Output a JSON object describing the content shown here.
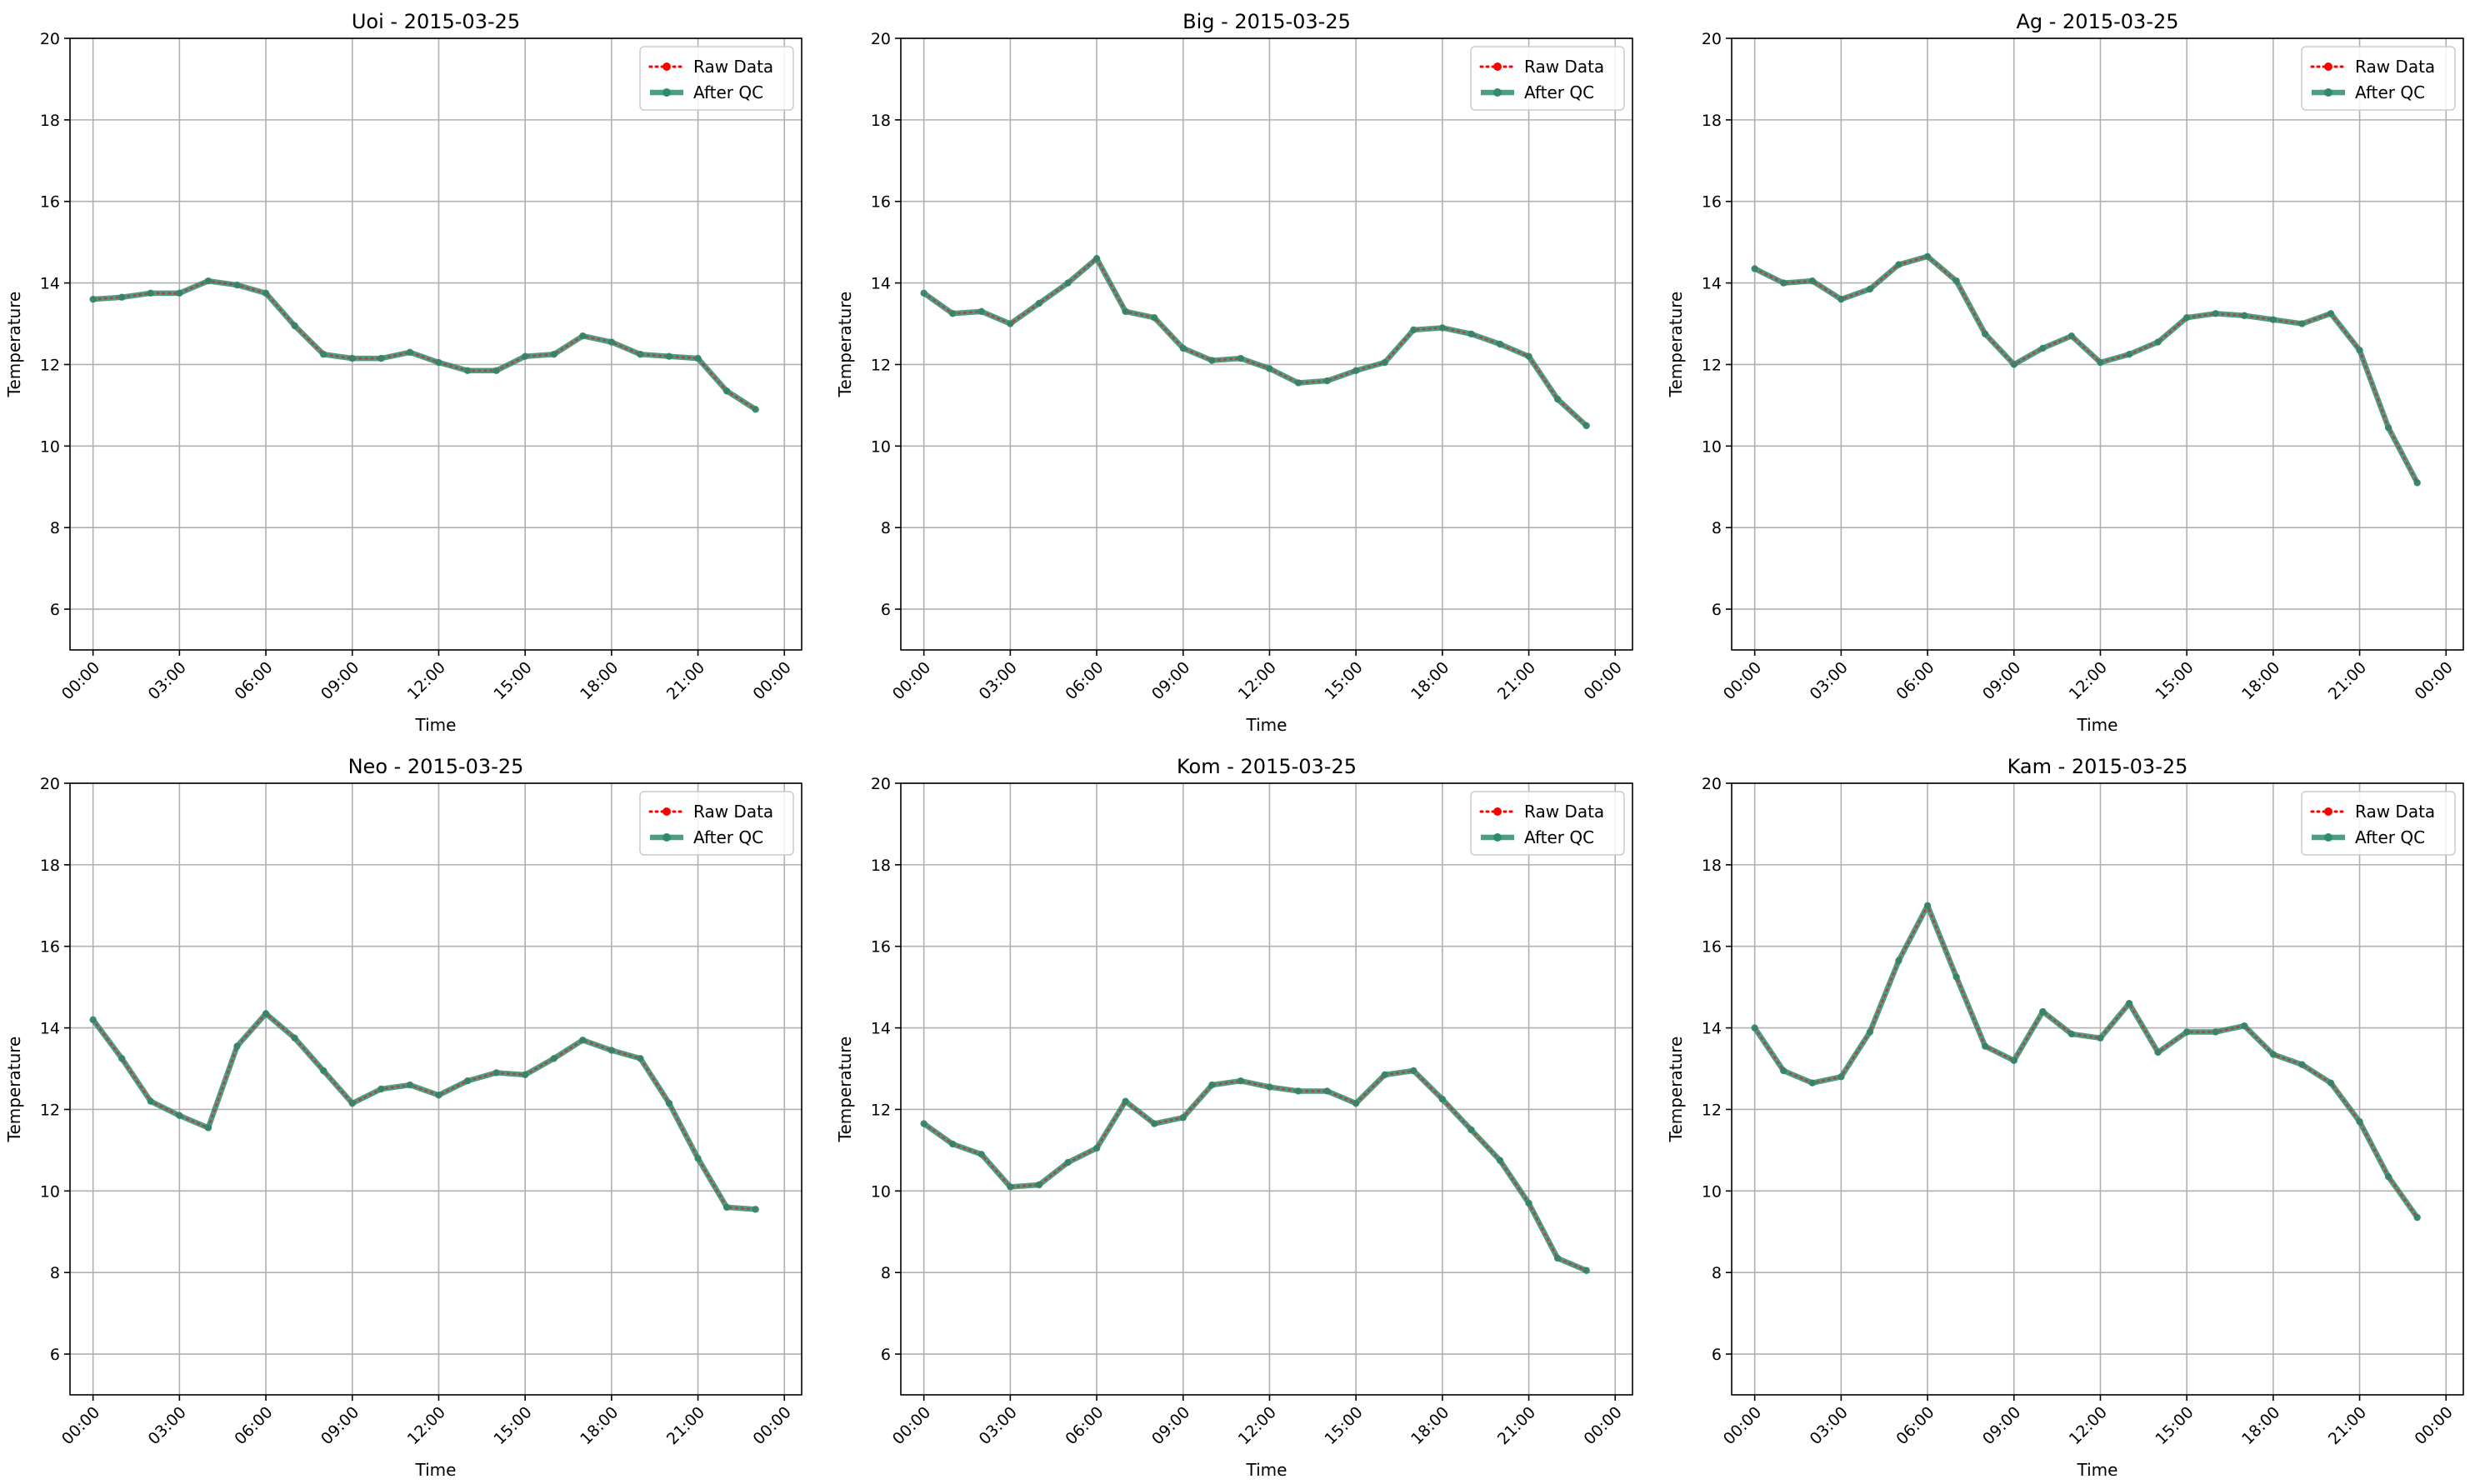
{
  "colors": {
    "raw": "#ff0000",
    "qc": "#2e8b6e",
    "grid": "#b0b0b0",
    "axis": "#000000",
    "legend_border": "#cccccc"
  },
  "chart_data": [
    {
      "type": "line",
      "title": "Uoi - 2015-03-25",
      "xlabel": "Time",
      "ylabel": "Temperature",
      "ylim": [
        5,
        20
      ],
      "yticks": [
        6,
        8,
        10,
        12,
        14,
        16,
        18,
        20
      ],
      "xlim": [
        -0.8,
        24.6
      ],
      "xticks": [
        0,
        3,
        6,
        9,
        12,
        15,
        18,
        21,
        24
      ],
      "xtick_labels": [
        "00:00",
        "03:00",
        "06:00",
        "09:00",
        "12:00",
        "15:00",
        "18:00",
        "21:00",
        "00:00"
      ],
      "grid": true,
      "legend": "top-right",
      "x": [
        0,
        1,
        2,
        3,
        4,
        5,
        6,
        7,
        8,
        9,
        10,
        11,
        12,
        13,
        14,
        15,
        16,
        17,
        18,
        19,
        20,
        21,
        22,
        23
      ],
      "series": [
        {
          "name": "Raw Data",
          "values": [
            13.6,
            13.65,
            13.75,
            13.75,
            14.05,
            13.95,
            13.75,
            12.95,
            12.25,
            12.15,
            12.15,
            12.3,
            12.05,
            11.85,
            11.85,
            12.2,
            12.25,
            12.7,
            12.55,
            12.25,
            12.2,
            12.15,
            11.35,
            10.9
          ]
        },
        {
          "name": "After QC",
          "values": [
            13.6,
            13.65,
            13.75,
            13.75,
            14.05,
            13.95,
            13.75,
            12.95,
            12.25,
            12.15,
            12.15,
            12.3,
            12.05,
            11.85,
            11.85,
            12.2,
            12.25,
            12.7,
            12.55,
            12.25,
            12.2,
            12.15,
            11.35,
            10.9
          ]
        }
      ]
    },
    {
      "type": "line",
      "title": "Big - 2015-03-25",
      "xlabel": "Time",
      "ylabel": "Temperature",
      "ylim": [
        5,
        20
      ],
      "yticks": [
        6,
        8,
        10,
        12,
        14,
        16,
        18,
        20
      ],
      "xlim": [
        -0.8,
        24.6
      ],
      "xticks": [
        0,
        3,
        6,
        9,
        12,
        15,
        18,
        21,
        24
      ],
      "xtick_labels": [
        "00:00",
        "03:00",
        "06:00",
        "09:00",
        "12:00",
        "15:00",
        "18:00",
        "21:00",
        "00:00"
      ],
      "grid": true,
      "legend": "top-right",
      "x": [
        0,
        1,
        2,
        3,
        4,
        5,
        6,
        7,
        8,
        9,
        10,
        11,
        12,
        13,
        14,
        15,
        16,
        17,
        18,
        19,
        20,
        21,
        22,
        23
      ],
      "series": [
        {
          "name": "Raw Data",
          "values": [
            13.75,
            13.25,
            13.3,
            13.0,
            13.5,
            14.0,
            14.6,
            13.3,
            13.15,
            12.4,
            12.1,
            12.15,
            11.9,
            11.55,
            11.6,
            11.85,
            12.05,
            12.85,
            12.9,
            12.75,
            12.5,
            12.2,
            11.15,
            10.5
          ]
        },
        {
          "name": "After QC",
          "values": [
            13.75,
            13.25,
            13.3,
            13.0,
            13.5,
            14.0,
            14.6,
            13.3,
            13.15,
            12.4,
            12.1,
            12.15,
            11.9,
            11.55,
            11.6,
            11.85,
            12.05,
            12.85,
            12.9,
            12.75,
            12.5,
            12.2,
            11.15,
            10.5
          ]
        }
      ]
    },
    {
      "type": "line",
      "title": "Ag - 2015-03-25",
      "xlabel": "Time",
      "ylabel": "Temperature",
      "ylim": [
        5,
        20
      ],
      "yticks": [
        6,
        8,
        10,
        12,
        14,
        16,
        18,
        20
      ],
      "xlim": [
        -0.8,
        24.6
      ],
      "xticks": [
        0,
        3,
        6,
        9,
        12,
        15,
        18,
        21,
        24
      ],
      "xtick_labels": [
        "00:00",
        "03:00",
        "06:00",
        "09:00",
        "12:00",
        "15:00",
        "18:00",
        "21:00",
        "00:00"
      ],
      "grid": true,
      "legend": "top-right",
      "x": [
        0,
        1,
        2,
        3,
        4,
        5,
        6,
        7,
        8,
        9,
        10,
        11,
        12,
        13,
        14,
        15,
        16,
        17,
        18,
        19,
        20,
        21,
        22,
        23
      ],
      "series": [
        {
          "name": "Raw Data",
          "values": [
            14.35,
            14.0,
            14.05,
            13.6,
            13.85,
            14.45,
            14.65,
            14.05,
            12.75,
            12.0,
            12.4,
            12.7,
            12.05,
            12.25,
            12.55,
            13.15,
            13.25,
            13.2,
            13.1,
            13.0,
            13.25,
            12.35,
            10.45,
            9.1
          ]
        },
        {
          "name": "After QC",
          "values": [
            14.35,
            14.0,
            14.05,
            13.6,
            13.85,
            14.45,
            14.65,
            14.05,
            12.75,
            12.0,
            12.4,
            12.7,
            12.05,
            12.25,
            12.55,
            13.15,
            13.25,
            13.2,
            13.1,
            13.0,
            13.25,
            12.35,
            10.45,
            9.1
          ]
        }
      ]
    },
    {
      "type": "line",
      "title": "Neo - 2015-03-25",
      "xlabel": "Time",
      "ylabel": "Temperature",
      "ylim": [
        5,
        20
      ],
      "yticks": [
        6,
        8,
        10,
        12,
        14,
        16,
        18,
        20
      ],
      "xlim": [
        -0.8,
        24.6
      ],
      "xticks": [
        0,
        3,
        6,
        9,
        12,
        15,
        18,
        21,
        24
      ],
      "xtick_labels": [
        "00:00",
        "03:00",
        "06:00",
        "09:00",
        "12:00",
        "15:00",
        "18:00",
        "21:00",
        "00:00"
      ],
      "grid": true,
      "legend": "top-right",
      "x": [
        0,
        1,
        2,
        3,
        4,
        5,
        6,
        7,
        8,
        9,
        10,
        11,
        12,
        13,
        14,
        15,
        16,
        17,
        18,
        19,
        20,
        21,
        22,
        23
      ],
      "series": [
        {
          "name": "Raw Data",
          "values": [
            14.2,
            13.25,
            12.2,
            11.85,
            11.55,
            13.55,
            14.35,
            13.75,
            12.95,
            12.15,
            12.5,
            12.6,
            12.35,
            12.7,
            12.9,
            12.85,
            13.25,
            13.7,
            13.45,
            13.25,
            12.15,
            10.8,
            9.6,
            9.55
          ]
        },
        {
          "name": "After QC",
          "values": [
            14.2,
            13.25,
            12.2,
            11.85,
            11.55,
            13.55,
            14.35,
            13.75,
            12.95,
            12.15,
            12.5,
            12.6,
            12.35,
            12.7,
            12.9,
            12.85,
            13.25,
            13.7,
            13.45,
            13.25,
            12.15,
            10.8,
            9.6,
            9.55
          ]
        }
      ]
    },
    {
      "type": "line",
      "title": "Kom - 2015-03-25",
      "xlabel": "Time",
      "ylabel": "Temperature",
      "ylim": [
        5,
        20
      ],
      "yticks": [
        6,
        8,
        10,
        12,
        14,
        16,
        18,
        20
      ],
      "xlim": [
        -0.8,
        24.6
      ],
      "xticks": [
        0,
        3,
        6,
        9,
        12,
        15,
        18,
        21,
        24
      ],
      "xtick_labels": [
        "00:00",
        "03:00",
        "06:00",
        "09:00",
        "12:00",
        "15:00",
        "18:00",
        "21:00",
        "00:00"
      ],
      "grid": true,
      "legend": "top-right",
      "x": [
        0,
        1,
        2,
        3,
        4,
        5,
        6,
        7,
        8,
        9,
        10,
        11,
        12,
        13,
        14,
        15,
        16,
        17,
        18,
        19,
        20,
        21,
        22,
        23
      ],
      "series": [
        {
          "name": "Raw Data",
          "values": [
            11.65,
            11.15,
            10.9,
            10.1,
            10.15,
            10.7,
            11.05,
            12.2,
            11.65,
            11.8,
            12.6,
            12.7,
            12.55,
            12.45,
            12.45,
            12.15,
            12.85,
            12.95,
            12.25,
            11.5,
            10.75,
            9.7,
            8.35,
            8.05
          ]
        },
        {
          "name": "After QC",
          "values": [
            11.65,
            11.15,
            10.9,
            10.1,
            10.15,
            10.7,
            11.05,
            12.2,
            11.65,
            11.8,
            12.6,
            12.7,
            12.55,
            12.45,
            12.45,
            12.15,
            12.85,
            12.95,
            12.25,
            11.5,
            10.75,
            9.7,
            8.35,
            8.05
          ]
        }
      ]
    },
    {
      "type": "line",
      "title": "Kam - 2015-03-25",
      "xlabel": "Time",
      "ylabel": "Temperature",
      "ylim": [
        5,
        20
      ],
      "yticks": [
        6,
        8,
        10,
        12,
        14,
        16,
        18,
        20
      ],
      "xlim": [
        -0.8,
        24.6
      ],
      "xticks": [
        0,
        3,
        6,
        9,
        12,
        15,
        18,
        21,
        24
      ],
      "xtick_labels": [
        "00:00",
        "03:00",
        "06:00",
        "09:00",
        "12:00",
        "15:00",
        "18:00",
        "21:00",
        "00:00"
      ],
      "grid": true,
      "legend": "top-right",
      "x": [
        0,
        1,
        2,
        3,
        4,
        5,
        6,
        7,
        8,
        9,
        10,
        11,
        12,
        13,
        14,
        15,
        16,
        17,
        18,
        19,
        20,
        21,
        22,
        23
      ],
      "series": [
        {
          "name": "Raw Data",
          "values": [
            14.0,
            12.95,
            12.65,
            12.8,
            13.9,
            15.65,
            17.0,
            15.25,
            13.55,
            13.2,
            14.4,
            13.85,
            13.75,
            14.6,
            13.4,
            13.9,
            13.9,
            14.05,
            13.35,
            13.1,
            12.65,
            11.7,
            10.35,
            9.35
          ]
        },
        {
          "name": "After QC",
          "values": [
            14.0,
            12.95,
            12.65,
            12.8,
            13.9,
            15.65,
            17.0,
            15.25,
            13.55,
            13.2,
            14.4,
            13.85,
            13.75,
            14.6,
            13.4,
            13.9,
            13.9,
            14.05,
            13.35,
            13.1,
            12.65,
            11.7,
            10.35,
            9.35
          ]
        }
      ]
    }
  ]
}
